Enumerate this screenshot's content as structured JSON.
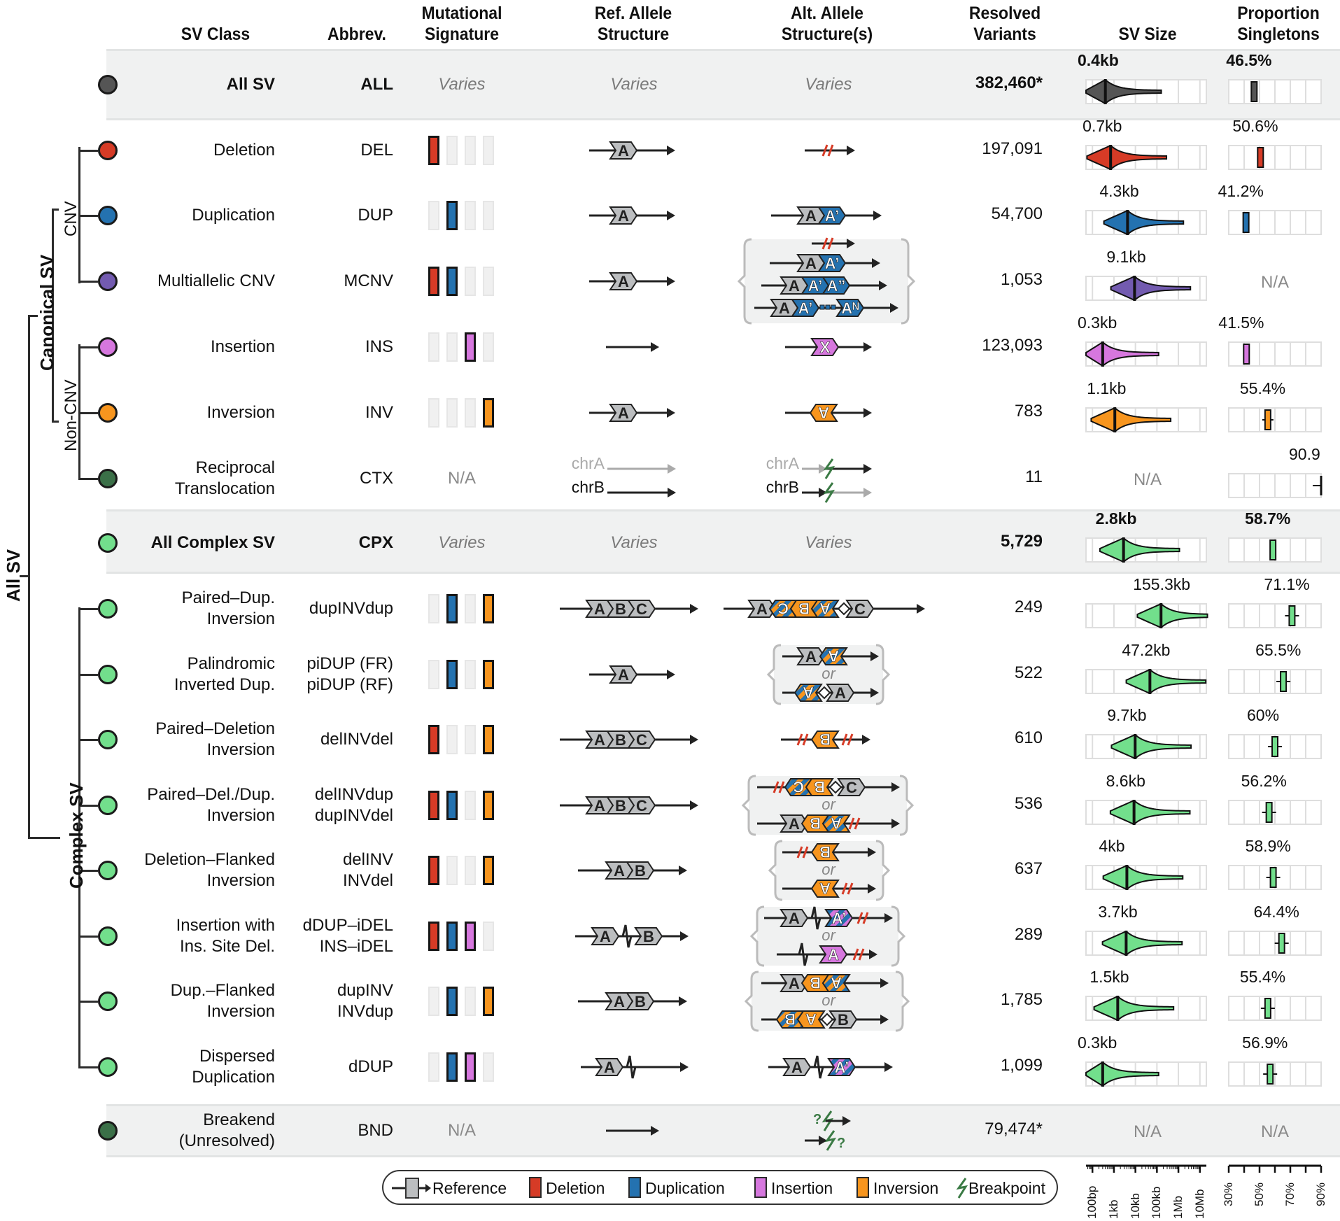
{
  "headers": {
    "sv_class": "SV Class",
    "abbrev": "Abbrev.",
    "mut_sig_1": "Mutational",
    "mut_sig_2": "Signature",
    "ref_1": "Ref. Allele",
    "ref_2": "Structure",
    "alt_1": "Alt. Allele",
    "alt_2": "Structure(s)",
    "resolved_1": "Resolved",
    "resolved_2": "Variants",
    "size": "SV Size",
    "prop_1": "Proportion",
    "prop_2": "Singletons"
  },
  "tree_labels": {
    "all_sv": "All SV",
    "canonical_sv": "Canonical SV",
    "cnv": "CNV",
    "non_cnv": "Non-CNV",
    "complex_sv": "Complex SV"
  },
  "colors": {
    "reference": "#bcbec0",
    "deletion": "#d63b26",
    "duplication": "#2472b0",
    "insertion": "#d677de",
    "inversion": "#f7951e",
    "breakpoint": "#3a7a44",
    "all": "#555555",
    "mcnv": "#735bb0",
    "ctx": "#3b7048",
    "cpx": "#72df8c",
    "bnd": "#3b7048",
    "band": "#f0f1f1"
  },
  "common": {
    "varies": "Varies",
    "na": "N/A",
    "or": "or",
    "chrA": "chrA",
    "chrB": "chrB"
  },
  "rows": [
    {
      "id": "all",
      "name_1": "All SV",
      "name_2": "",
      "abbrev_1": "ALL",
      "abbrev_2": "",
      "color": "#555555",
      "signature": null,
      "count": "382,460*",
      "size_label": "0.4kb",
      "median_size_bp": 400,
      "prop_label": "46.5%",
      "prop_singleton": 46.5,
      "bold": true
    },
    {
      "id": "del",
      "name_1": "Deletion",
      "name_2": "",
      "abbrev_1": "DEL",
      "abbrev_2": "",
      "color": "#d63b26",
      "signature": [
        "deletion"
      ],
      "count": "197,091",
      "size_label": "0.7kb",
      "median_size_bp": 700,
      "prop_label": "50.6%",
      "prop_singleton": 50.6
    },
    {
      "id": "dup",
      "name_1": "Duplication",
      "name_2": "",
      "abbrev_1": "DUP",
      "abbrev_2": "",
      "color": "#2472b0",
      "signature": [
        "duplication"
      ],
      "count": "54,700",
      "size_label": "4.3kb",
      "median_size_bp": 4300,
      "prop_label": "41.2%",
      "prop_singleton": 41.2
    },
    {
      "id": "mcnv",
      "name_1": "Multiallelic CNV",
      "name_2": "",
      "abbrev_1": "MCNV",
      "abbrev_2": "",
      "color": "#735bb0",
      "signature": [
        "deletion",
        "duplication"
      ],
      "count": "1,053",
      "size_label": "9.1kb",
      "median_size_bp": 9100,
      "prop_label": "N/A",
      "prop_singleton": null
    },
    {
      "id": "ins",
      "name_1": "Insertion",
      "name_2": "",
      "abbrev_1": "INS",
      "abbrev_2": "",
      "color": "#d677de",
      "signature": [
        "insertion"
      ],
      "count": "123,093",
      "size_label": "0.3kb",
      "median_size_bp": 300,
      "prop_label": "41.5%",
      "prop_singleton": 41.5
    },
    {
      "id": "inv",
      "name_1": "Inversion",
      "name_2": "",
      "abbrev_1": "INV",
      "abbrev_2": "",
      "color": "#f7951e",
      "signature": [
        "inversion"
      ],
      "count": "783",
      "size_label": "1.1kb",
      "median_size_bp": 1100,
      "prop_label": "55.4%",
      "prop_singleton": 55.4
    },
    {
      "id": "ctx",
      "name_1": "Reciprocal",
      "name_2": "Translocation",
      "abbrev_1": "CTX",
      "abbrev_2": "",
      "color": "#3b7048",
      "signature": "N/A",
      "count": "11",
      "size_label": "N/A",
      "median_size_bp": null,
      "prop_label": "90.9",
      "prop_singleton": 90.9
    },
    {
      "id": "cpx",
      "name_1": "All Complex SV",
      "name_2": "",
      "abbrev_1": "CPX",
      "abbrev_2": "",
      "color": "#72df8c",
      "signature": null,
      "count": "5,729",
      "size_label": "2.8kb",
      "median_size_bp": 2800,
      "prop_label": "58.7%",
      "prop_singleton": 58.7,
      "bold": true
    },
    {
      "id": "dupinvdup",
      "name_1": "Paired–Dup.",
      "name_2": "Inversion",
      "abbrev_1": "dupINVdup",
      "abbrev_2": "",
      "color": "#72df8c",
      "signature": [
        "duplication",
        "inversion"
      ],
      "count": "249",
      "size_label": "155.3kb",
      "median_size_bp": 155300,
      "prop_label": "71.1%",
      "prop_singleton": 71.1
    },
    {
      "id": "pidup",
      "name_1": "Palindromic",
      "name_2": "Inverted Dup.",
      "abbrev_1": "piDUP (FR)",
      "abbrev_2": "piDUP (RF)",
      "color": "#72df8c",
      "signature": [
        "duplication",
        "inversion"
      ],
      "count": "522",
      "size_label": "47.2kb",
      "median_size_bp": 47200,
      "prop_label": "65.5%",
      "prop_singleton": 65.5
    },
    {
      "id": "delinvdel",
      "name_1": "Paired–Deletion",
      "name_2": "Inversion",
      "abbrev_1": "delINVdel",
      "abbrev_2": "",
      "color": "#72df8c",
      "signature": [
        "deletion",
        "inversion"
      ],
      "count": "610",
      "size_label": "9.7kb",
      "median_size_bp": 9700,
      "prop_label": "60%",
      "prop_singleton": 60
    },
    {
      "id": "delinvdup",
      "name_1": "Paired–Del./Dup.",
      "name_2": "Inversion",
      "abbrev_1": "delINVdup",
      "abbrev_2": "dupINVdel",
      "color": "#72df8c",
      "signature": [
        "deletion",
        "duplication",
        "inversion"
      ],
      "count": "536",
      "size_label": "8.6kb",
      "median_size_bp": 8600,
      "prop_label": "56.2%",
      "prop_singleton": 56.2
    },
    {
      "id": "delinv",
      "name_1": "Deletion–Flanked",
      "name_2": "Inversion",
      "abbrev_1": "delINV",
      "abbrev_2": "INVdel",
      "color": "#72df8c",
      "signature": [
        "deletion",
        "inversion"
      ],
      "count": "637",
      "size_label": "4kb",
      "median_size_bp": 4000,
      "prop_label": "58.9%",
      "prop_singleton": 58.9
    },
    {
      "id": "ddupidel",
      "name_1": "Insertion with",
      "name_2": "Ins. Site Del.",
      "abbrev_1": "dDUP–iDEL",
      "abbrev_2": "INS–iDEL",
      "color": "#72df8c",
      "signature": [
        "deletion",
        "duplication",
        "insertion"
      ],
      "count": "289",
      "size_label": "3.7kb",
      "median_size_bp": 3700,
      "prop_label": "64.4%",
      "prop_singleton": 64.4
    },
    {
      "id": "dupinv",
      "name_1": "Dup.–Flanked",
      "name_2": "Inversion",
      "abbrev_1": "dupINV",
      "abbrev_2": "INVdup",
      "color": "#72df8c",
      "signature": [
        "duplication",
        "inversion"
      ],
      "count": "1,785",
      "size_label": "1.5kb",
      "median_size_bp": 1500,
      "prop_label": "55.4%",
      "prop_singleton": 55.4
    },
    {
      "id": "ddup",
      "name_1": "Dispersed",
      "name_2": "Duplication",
      "abbrev_1": "dDUP",
      "abbrev_2": "",
      "color": "#72df8c",
      "signature": [
        "duplication",
        "insertion"
      ],
      "count": "1,099",
      "size_label": "0.3kb",
      "median_size_bp": 300,
      "prop_label": "56.9%",
      "prop_singleton": 56.9
    },
    {
      "id": "bnd",
      "name_1": "Breakend",
      "name_2": "(Unresolved)",
      "abbrev_1": "BND",
      "abbrev_2": "",
      "color": "#3b7048",
      "signature": "N/A",
      "count": "79,474*",
      "size_label": "N/A",
      "median_size_bp": null,
      "prop_label": "N/A",
      "prop_singleton": null
    }
  ],
  "legend": [
    {
      "key": "reference",
      "label": "Reference"
    },
    {
      "key": "deletion",
      "label": "Deletion"
    },
    {
      "key": "duplication",
      "label": "Duplication"
    },
    {
      "key": "insertion",
      "label": "Insertion"
    },
    {
      "key": "inversion",
      "label": "Inversion"
    },
    {
      "key": "breakpoint",
      "label": "Breakpoint"
    }
  ],
  "size_axis": {
    "ticks": [
      "100bp",
      "1kb",
      "10kb",
      "100kb",
      "1Mb",
      "10Mb"
    ],
    "range_log10_bp": [
      1.7,
      7.3
    ]
  },
  "prop_axis": {
    "ticks": [
      "30%",
      "50%",
      "70%",
      "90%"
    ],
    "range_percent": [
      30,
      90
    ]
  }
}
